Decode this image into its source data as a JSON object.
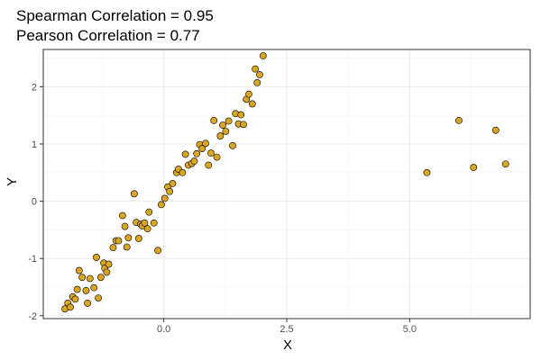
{
  "chart_data": {
    "type": "scatter",
    "title_lines": [
      "Spearman Correlation = 0.95",
      "Pearson Correlation = 0.77"
    ],
    "xlabel": "X",
    "ylabel": "Y",
    "xlim": [
      -2.45,
      7.45
    ],
    "ylim": [
      -2.05,
      2.65
    ],
    "x_ticks": [
      0.0,
      2.5,
      5.0
    ],
    "x_tick_labels": [
      "0.0",
      "2.5",
      "5.0"
    ],
    "y_ticks": [
      -2,
      -1,
      0,
      1,
      2
    ],
    "y_tick_labels": [
      "-2",
      "-1",
      "0",
      "1",
      "2"
    ],
    "grid": true,
    "legend": "none",
    "point_color": "#DAA520",
    "point_stroke": "#000000",
    "x": [
      -2.01,
      -1.95,
      -1.9,
      -1.85,
      -1.8,
      -1.76,
      -1.72,
      -1.66,
      -1.58,
      -1.55,
      -1.5,
      -1.42,
      -1.37,
      -1.33,
      -1.28,
      -1.22,
      -1.2,
      -1.16,
      -1.12,
      -1.03,
      -0.97,
      -0.92,
      -0.84,
      -0.79,
      -0.75,
      -0.72,
      -0.6,
      -0.56,
      -0.51,
      -0.47,
      -0.44,
      -0.39,
      -0.33,
      -0.3,
      -0.2,
      -0.12,
      -0.05,
      0.02,
      0.08,
      0.12,
      0.18,
      0.26,
      0.3,
      0.38,
      0.44,
      0.5,
      0.57,
      0.62,
      0.67,
      0.73,
      0.78,
      0.85,
      0.91,
      0.96,
      1.02,
      1.08,
      1.15,
      1.2,
      1.26,
      1.32,
      1.4,
      1.46,
      1.52,
      1.57,
      1.62,
      1.68,
      1.73,
      1.8,
      1.86,
      1.9,
      1.95,
      2.02,
      5.35,
      6.0,
      6.3,
      6.75,
      6.95
    ],
    "y": [
      -1.88,
      -1.78,
      -1.85,
      -1.67,
      -1.71,
      -1.54,
      -1.21,
      -1.33,
      -1.56,
      -1.78,
      -1.35,
      -1.51,
      -0.98,
      -1.69,
      -1.33,
      -1.08,
      -1.17,
      -1.24,
      -1.1,
      -0.81,
      -0.69,
      -0.69,
      -0.25,
      -0.44,
      -0.8,
      -0.64,
      0.13,
      -0.37,
      -0.65,
      -0.4,
      -0.43,
      -0.38,
      -0.48,
      -0.19,
      -0.38,
      -0.86,
      -0.06,
      0.05,
      0.25,
      0.17,
      0.31,
      0.5,
      0.56,
      0.5,
      0.82,
      0.63,
      0.66,
      0.7,
      0.83,
      0.99,
      0.92,
      1.01,
      0.63,
      0.84,
      1.41,
      0.77,
      1.14,
      1.33,
      1.22,
      1.4,
      0.97,
      1.53,
      1.35,
      1.51,
      1.34,
      1.78,
      1.87,
      1.7,
      2.31,
      2.07,
      2.21,
      2.54,
      0.5,
      1.41,
      0.59,
      1.24,
      0.65
    ]
  }
}
